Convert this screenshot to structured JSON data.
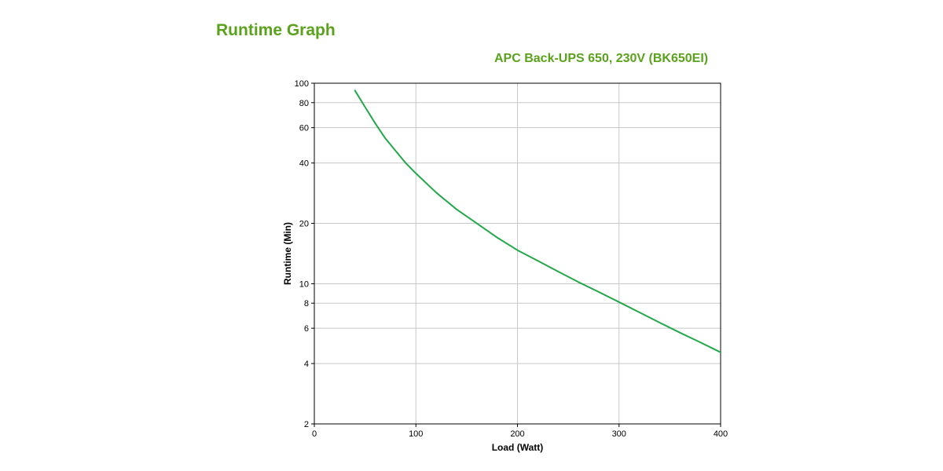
{
  "page": {
    "title": "Runtime Graph"
  },
  "chart_data": {
    "type": "line",
    "title": "APC Back-UPS 650, 230V (BK650EI)",
    "xlabel": "Load (Watt)",
    "ylabel": "Runtime (Min)",
    "xlim": [
      0,
      400
    ],
    "ylim": [
      2,
      100
    ],
    "yscale": "log",
    "xticks": [
      0,
      100,
      200,
      300,
      400
    ],
    "yticks": [
      2,
      4,
      6,
      8,
      10,
      20,
      40,
      60,
      80,
      100
    ],
    "grid": true,
    "line_color": "#22a84a",
    "accent_color": "#5aa21c",
    "series": [
      {
        "x": [
          40,
          50,
          60,
          70,
          80,
          90,
          100,
          120,
          140,
          160,
          180,
          200,
          220,
          240,
          260,
          280,
          300,
          320,
          340,
          360,
          380,
          400
        ],
        "values": [
          92,
          76,
          63,
          53,
          46,
          40,
          35.5,
          28.5,
          23.5,
          20,
          17,
          14.7,
          13,
          11.5,
          10.2,
          9.1,
          8.1,
          7.2,
          6.4,
          5.7,
          5.1,
          4.55
        ]
      }
    ]
  }
}
